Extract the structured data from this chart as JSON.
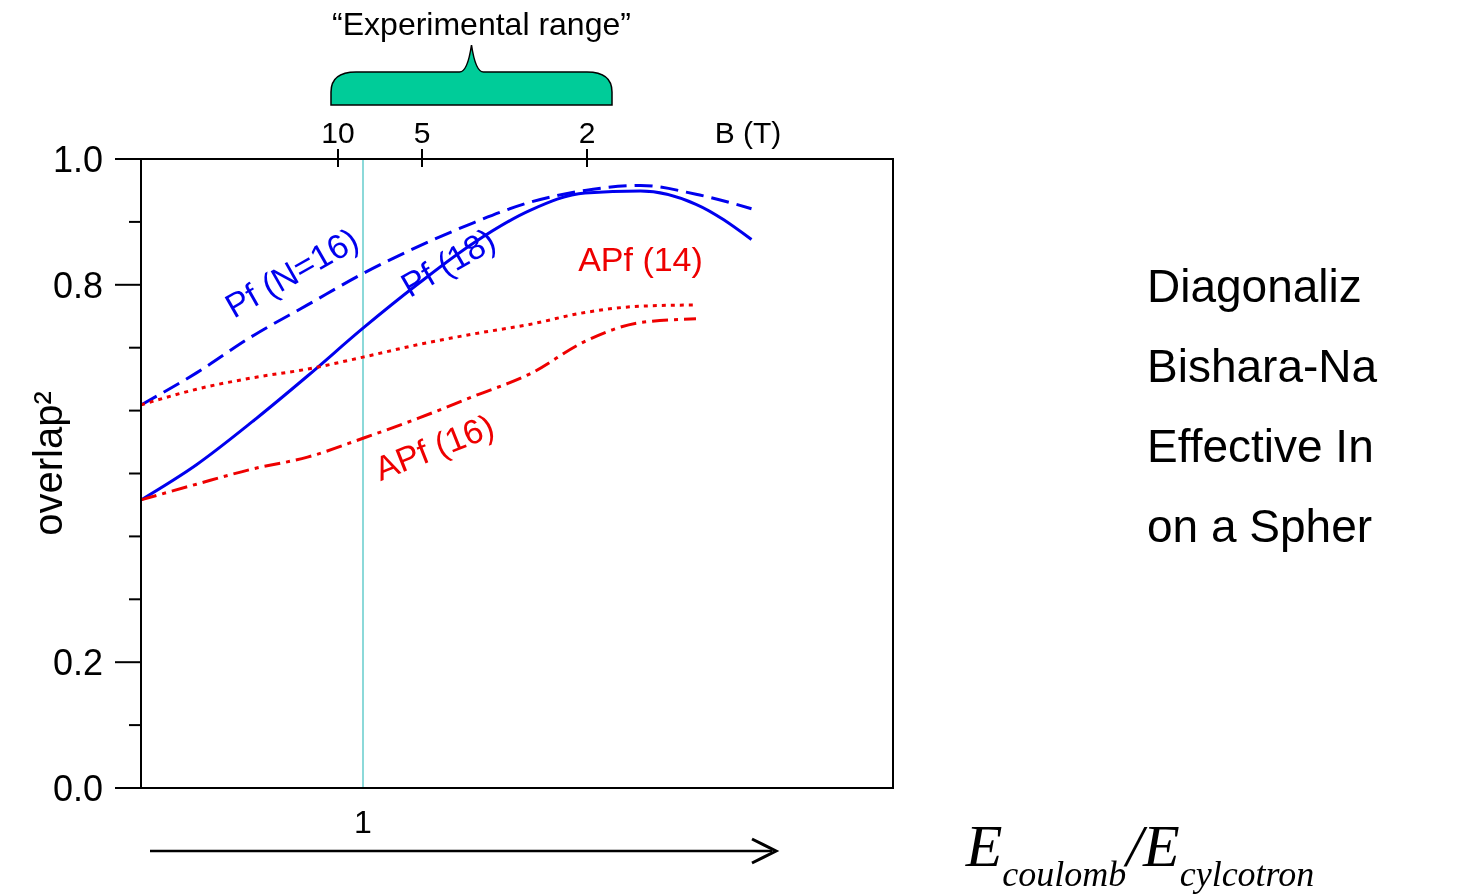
{
  "chart_data": {
    "type": "line",
    "ylabel": "overlap²",
    "xlabel": "E$_{coulomb}$/E$_{cylcotron}$",
    "x2label": "B (T)",
    "categories": [
      null,
      null,
      null,
      null,
      "1",
      null,
      null,
      null,
      null,
      null,
      null,
      null,
      null,
      null
    ],
    "ylim": [
      0,
      1
    ],
    "yticks": [
      {
        "value": 0,
        "label": "0.0"
      },
      {
        "value": 0.1,
        "label": null
      },
      {
        "value": 0.2,
        "label": "0.2"
      },
      {
        "value": 0.3,
        "label": null
      },
      {
        "value": 0.4,
        "label": null
      },
      {
        "value": 0.5,
        "label": null
      },
      {
        "value": 0.6,
        "label": null
      },
      {
        "value": 0.7,
        "label": null
      },
      {
        "value": 0.8,
        "label": "0.8"
      },
      {
        "value": 0.9,
        "label": null
      },
      {
        "value": 1,
        "label": "1.0"
      }
    ],
    "ref_lines": [
      {
        "axis": "x",
        "value": "1",
        "color": "#66cccc"
      }
    ],
    "series": [
      {
        "name": "Pf (N=16)",
        "color": "#0000ee",
        "line_style": "dashed",
        "values": [
          0.609,
          0.66,
          0.718,
          0.768,
          0.818,
          0.861,
          0.899,
          0.931,
          0.95,
          0.958,
          0.944,
          0.921,
          null,
          null
        ]
      },
      {
        "name": "Pf (18)",
        "color": "#0000ee",
        "line_style": "solid",
        "values": [
          0.458,
          0.514,
          0.582,
          0.655,
          0.731,
          0.802,
          0.867,
          0.918,
          0.946,
          0.949,
          0.928,
          0.872,
          null,
          null
        ]
      },
      {
        "name": "APf (14)",
        "color": "#ee0000",
        "line_style": "dotted",
        "values": [
          0.609,
          0.634,
          0.652,
          0.666,
          0.685,
          0.705,
          0.722,
          0.737,
          0.756,
          0.766,
          0.768,
          null,
          null,
          null
        ]
      },
      {
        "name": "APf (16)",
        "color": "#ee0000",
        "line_style": "dashdot",
        "values": [
          0.458,
          0.483,
          0.507,
          0.526,
          0.556,
          0.588,
          0.623,
          0.658,
          0.71,
          0.74,
          0.746,
          null,
          null,
          null
        ]
      }
    ],
    "annotations": [
      "“Experimental range”",
      "10",
      "5",
      "2",
      "Diagonaliz\nBishara-Na\nEffective In\non a Spher"
    ]
  }
}
